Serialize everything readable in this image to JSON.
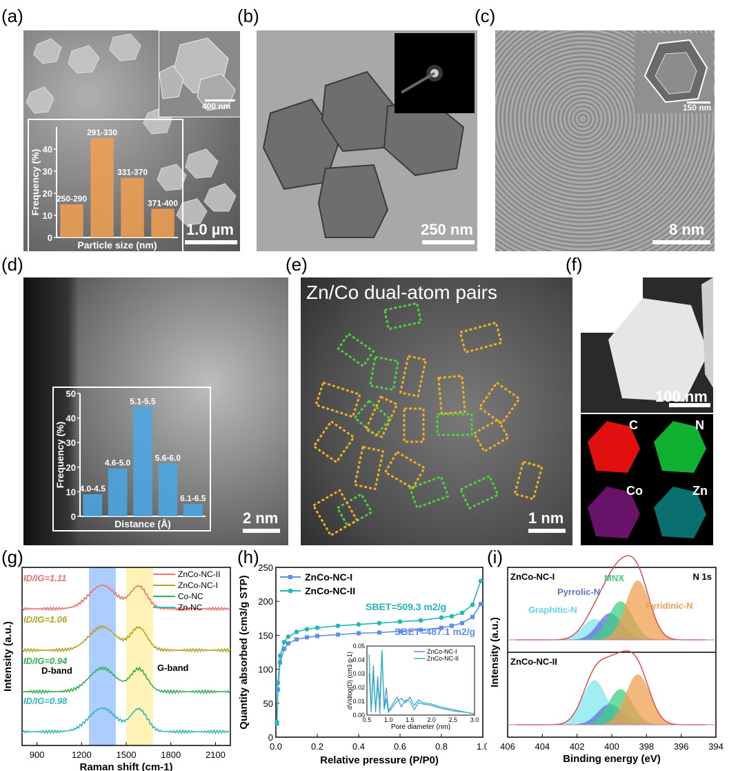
{
  "panel_labels": {
    "a": "(a)",
    "b": "(b)",
    "c": "(c)",
    "d": "(d)",
    "e": "(e)",
    "f": "(f)",
    "g": "(g)",
    "h": "(h)",
    "i": "(i)"
  },
  "panel_a": {
    "scale_main": "1.0 µm",
    "scale_inset": "400 nm",
    "hist_ylabel": "Frequency (%)",
    "hist_xlabel": "Particle size (nm)"
  },
  "panel_b": {
    "scale": "250 nm"
  },
  "panel_c": {
    "scale": "8 nm",
    "scale_inset": "150 nm"
  },
  "panel_d": {
    "scale": "2 nm",
    "hist_ylabel": "Frequency (%)",
    "hist_xlabel": "Distance (Å)"
  },
  "panel_e": {
    "title": "Zn/Co dual-atom pairs",
    "scale": "1 nm"
  },
  "panel_f": {
    "scale": "100 nm",
    "maps": [
      "C",
      "N",
      "Co",
      "Zn"
    ],
    "map_colors": [
      "#e01010",
      "#10b030",
      "#c020c0",
      "#10c8c8"
    ]
  },
  "chart_data": [
    {
      "id": "a-hist",
      "type": "bar",
      "title": "",
      "categories": [
        "250-290",
        "291-330",
        "331-370",
        "371-400"
      ],
      "values": [
        15,
        45,
        27,
        13
      ],
      "xlabel": "Particle size (nm)",
      "ylabel": "Frequency (%)",
      "ylim": [
        0,
        50
      ],
      "yticks": [
        0,
        10,
        20,
        30,
        40
      ],
      "color": "#f0a050"
    },
    {
      "id": "d-hist",
      "type": "bar",
      "title": "",
      "categories": [
        "4.0-4.5",
        "4.6-5.0",
        "5.1-5.5",
        "5.6-6.0",
        "6.1-6.5"
      ],
      "values": [
        9,
        19.5,
        44.5,
        21.5,
        5
      ],
      "xlabel": "Distance (Å)",
      "ylabel": "Frequency (%)",
      "ylim": [
        0,
        50
      ],
      "yticks": [
        0,
        10,
        20,
        30,
        40,
        50
      ],
      "color": "#4aa8e8"
    },
    {
      "id": "g-raman",
      "type": "line",
      "xlabel": "Raman shift (cm-1)",
      "ylabel": "Intensity (a.u.)",
      "xlim": [
        800,
        2200
      ],
      "xticks": [
        900,
        1200,
        1500,
        1800,
        2100
      ],
      "bands": [
        {
          "name": "D-band",
          "range": [
            1250,
            1430
          ],
          "color": "#9ec4ff"
        },
        {
          "name": "G-band",
          "range": [
            1500,
            1680
          ],
          "color": "#fff2a8"
        }
      ],
      "series": [
        {
          "name": "ZnCo-NC-II",
          "color": "#f07070",
          "ratio_label": "ID/IG=1.11"
        },
        {
          "name": "ZnCo-NC-I",
          "color": "#b8a020",
          "ratio_label": "ID/IG=1.06"
        },
        {
          "name": "Co-NC",
          "color": "#30b050",
          "ratio_label": "ID/IG=0.94"
        },
        {
          "name": "Zn-NC",
          "color": "#30b8c0",
          "ratio_label": "ID/IG=0.98"
        }
      ],
      "annotations": [
        "D-band",
        "G-band"
      ]
    },
    {
      "id": "h-bet",
      "type": "line",
      "xlabel": "Relative pressure (P/P0)",
      "ylabel": "Quantity absorbed (cm3/g STP)",
      "xlim": [
        0.0,
        1.0
      ],
      "ylim": [
        0,
        250
      ],
      "xticks": [
        0.0,
        0.2,
        0.4,
        0.6,
        0.8,
        1.0
      ],
      "yticks": [
        0,
        50,
        100,
        150,
        200,
        250
      ],
      "series": [
        {
          "name": "ZnCo-NC-I",
          "color": "#5a8ef0",
          "x": [
            0.005,
            0.01,
            0.02,
            0.04,
            0.06,
            0.1,
            0.15,
            0.2,
            0.3,
            0.4,
            0.5,
            0.6,
            0.7,
            0.8,
            0.85,
            0.9,
            0.95,
            0.99
          ],
          "y": [
            20,
            70,
            110,
            130,
            138,
            144,
            147,
            149,
            151,
            153,
            154,
            156,
            158,
            161,
            164,
            168,
            177,
            196
          ]
        },
        {
          "name": "ZnCo-NC-II",
          "color": "#20b8b8",
          "x": [
            0.005,
            0.01,
            0.02,
            0.04,
            0.06,
            0.1,
            0.15,
            0.2,
            0.3,
            0.4,
            0.5,
            0.6,
            0.7,
            0.8,
            0.85,
            0.9,
            0.95,
            0.99
          ],
          "y": [
            22,
            80,
            120,
            140,
            148,
            155,
            159,
            161,
            164,
            166,
            168,
            170,
            172,
            176,
            178,
            183,
            195,
            230
          ]
        }
      ],
      "annotations": {
        "bet_II": "SBET=509.3 m2/g",
        "bet_I": "SBET=487.1 m2/g"
      },
      "inset": {
        "xlabel": "Pore diameter (nm)",
        "ylabel": "dV/dlog(D) (cm3 g-1)",
        "xlim": [
          0.5,
          3.0
        ],
        "ylim": [
          0,
          0.05
        ],
        "xticks": [
          0.5,
          1.0,
          1.5,
          2.0,
          2.5,
          3.0
        ],
        "yticks": [
          0.0,
          0.01,
          0.02,
          0.03,
          0.04,
          0.05
        ],
        "series": [
          {
            "name": "ZnCo-NC-I",
            "color": "#5a8ef0",
            "x": [
              0.55,
              0.6,
              0.65,
              0.7,
              0.75,
              0.8,
              0.85,
              0.9,
              0.95,
              1.0,
              1.1,
              1.2,
              1.3,
              1.4,
              1.5,
              1.6,
              1.7,
              1.8,
              2.0,
              2.2,
              2.5,
              2.8,
              3.0
            ],
            "y": [
              0.03,
              0.004,
              0.036,
              0.002,
              0.028,
              0.001,
              0.046,
              0.006,
              0.02,
              0.003,
              0.008,
              0.013,
              0.006,
              0.011,
              0.01,
              0.004,
              0.009,
              0.008,
              0.007,
              0.005,
              0.003,
              0.002,
              0.001
            ]
          },
          {
            "name": "ZnCo-NC-II",
            "color": "#20b8b8",
            "x": [
              0.55,
              0.6,
              0.65,
              0.7,
              0.75,
              0.8,
              0.85,
              0.9,
              0.95,
              1.0,
              1.1,
              1.2,
              1.3,
              1.4,
              1.5,
              1.6,
              1.7,
              1.8,
              2.0,
              2.2,
              2.5,
              2.8,
              3.0
            ],
            "y": [
              0.044,
              0.002,
              0.03,
              0.005,
              0.02,
              0.012,
              0.047,
              0.004,
              0.012,
              0.002,
              0.006,
              0.01,
              0.012,
              0.009,
              0.013,
              0.007,
              0.011,
              0.009,
              0.008,
              0.006,
              0.004,
              0.002,
              0.001
            ]
          }
        ],
        "legend": [
          "ZnCo-NC-I",
          "ZnCo-NC-II"
        ]
      }
    },
    {
      "id": "i-xps",
      "type": "area",
      "xlabel": "Binding energy (eV)",
      "ylabel": "Intensity (a.u.)",
      "xlim": [
        406,
        394
      ],
      "xticks": [
        406,
        404,
        402,
        400,
        398,
        396,
        394
      ],
      "corner_label": "N 1s",
      "components": [
        {
          "name": "Graphitic-N",
          "color": "#80e8f0"
        },
        {
          "name": "Pyrrolic-N",
          "color": "#6070e0"
        },
        {
          "name": "MNX",
          "color": "#40d080"
        },
        {
          "name": "Pyridinic-N",
          "color": "#f0a050"
        }
      ],
      "subplots": [
        {
          "name": "ZnCo-NC-I",
          "peaks": [
            {
              "center": 401.0,
              "height": 0.35
            },
            {
              "center": 400.1,
              "height": 0.45
            },
            {
              "center": 399.5,
              "height": 0.65
            },
            {
              "center": 398.5,
              "height": 1.0
            }
          ]
        },
        {
          "name": "ZnCo-NC-II",
          "peaks": [
            {
              "center": 401.0,
              "height": 0.75
            },
            {
              "center": 400.1,
              "height": 0.35
            },
            {
              "center": 399.5,
              "height": 0.6
            },
            {
              "center": 398.5,
              "height": 0.85
            }
          ]
        }
      ]
    }
  ]
}
